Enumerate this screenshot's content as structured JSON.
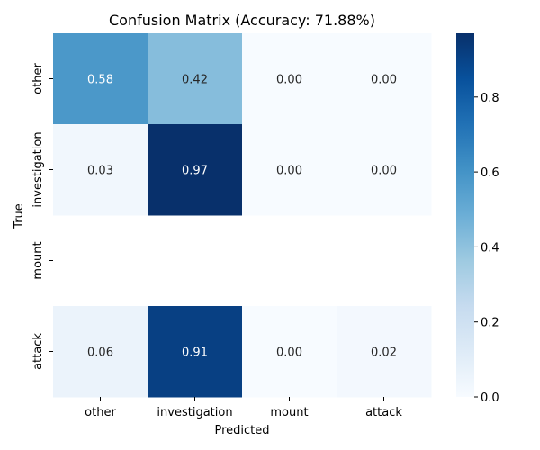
{
  "chart_data": {
    "type": "heatmap",
    "title": "Confusion Matrix (Accuracy: 71.88%)",
    "xlabel": "Predicted",
    "ylabel": "True",
    "x_categories": [
      "other",
      "investigation",
      "mount",
      "attack"
    ],
    "y_categories": [
      "other",
      "investigation",
      "mount",
      "attack"
    ],
    "values": [
      [
        0.58,
        0.42,
        0.0,
        0.0
      ],
      [
        0.03,
        0.97,
        0.0,
        0.0
      ],
      [
        null,
        null,
        null,
        null
      ],
      [
        0.06,
        0.91,
        0.0,
        0.02
      ]
    ],
    "value_format": "2 decimals",
    "colormap": "Blues",
    "color_range": [
      0.0,
      0.97
    ],
    "colorbar_ticks": [
      0.0,
      0.2,
      0.4,
      0.6,
      0.8
    ],
    "colorbar_tick_labels": [
      "0.0",
      "0.2",
      "0.4",
      "0.6",
      "0.8"
    ]
  }
}
